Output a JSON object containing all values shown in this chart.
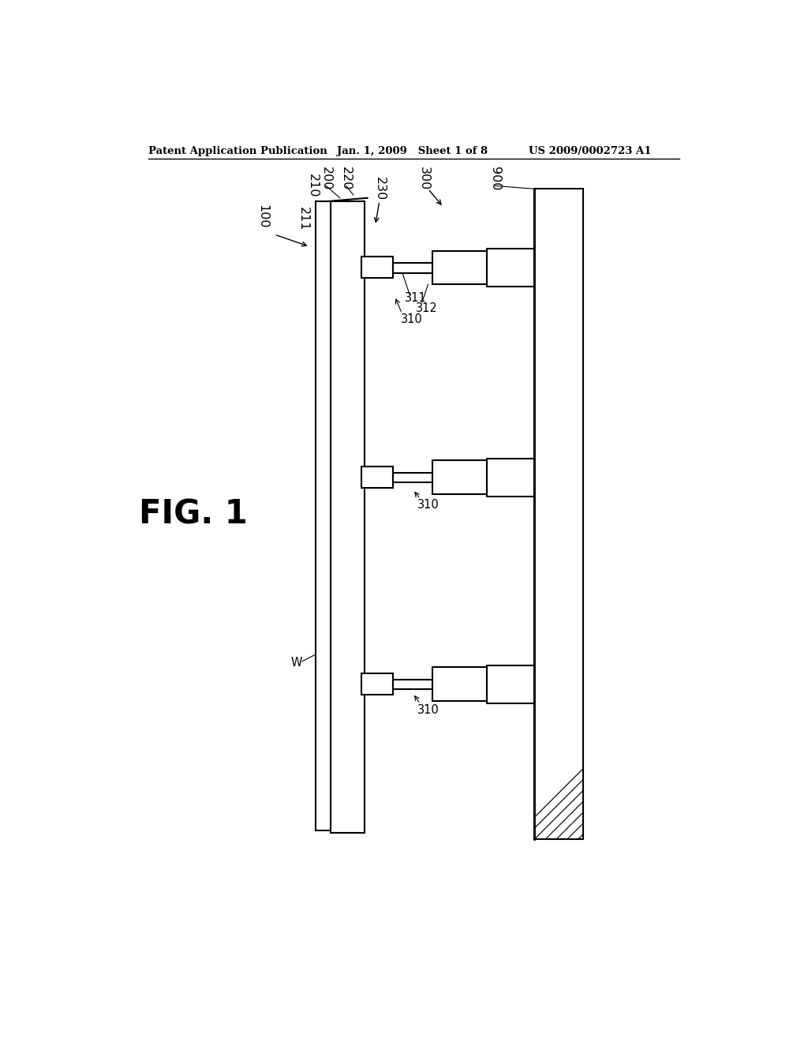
{
  "header_left": "Patent Application Publication",
  "header_mid": "Jan. 1, 2009   Sheet 1 of 8",
  "header_right": "US 2009/0002723 A1",
  "fig_label": "FIG. 1",
  "bg_color": "#ffffff",
  "line_color": "#000000"
}
